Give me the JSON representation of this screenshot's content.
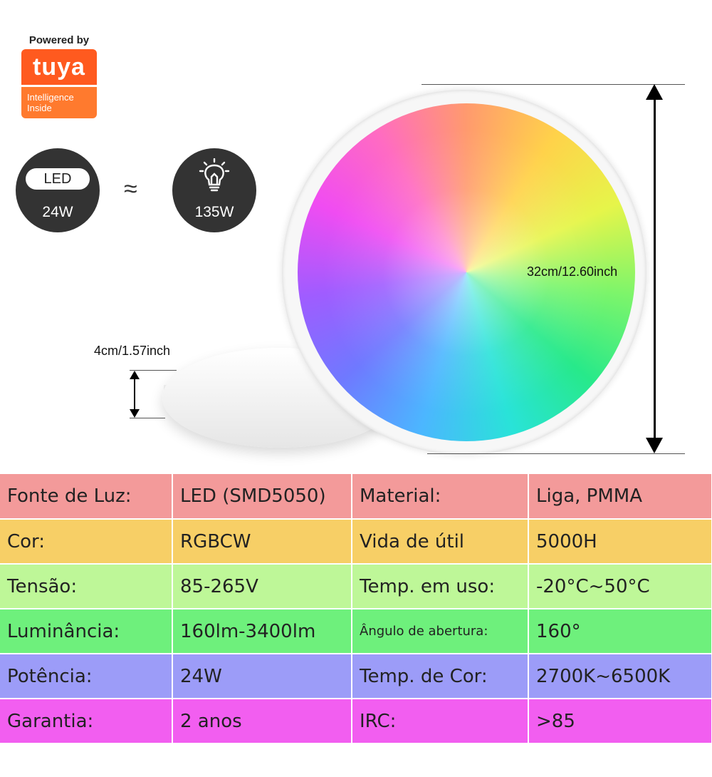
{
  "logo": {
    "powered_by": "Powered by",
    "brand": "tuya",
    "tagline_1": "Intelligence",
    "tagline_2": "Inside",
    "color": "#ff5a1f"
  },
  "comparison": {
    "led_label": "LED",
    "led_watts": "24W",
    "approx_symbol": "≈",
    "bulb_icon": "lightbulb-icon",
    "bulb_watts": "135W"
  },
  "dimensions": {
    "diameter": "32cm/12.60inch",
    "height": "4cm/1.57inch"
  },
  "specs": [
    {
      "label1": "Fonte de Luz:",
      "value1": "LED (SMD5050)",
      "label2": "Material:",
      "value2": "Liga, PMMA"
    },
    {
      "label1": "Cor:",
      "value1": "RGBCW",
      "label2": "Vida de útil",
      "value2": "5000H"
    },
    {
      "label1": "Tensão:",
      "value1": "85-265V",
      "label2": "Temp. em uso:",
      "value2": "-20°C~50°C"
    },
    {
      "label1": "Luminância:",
      "value1": "160lm-3400lm",
      "label2": "Ângulo de abertura:",
      "value2": "160°"
    },
    {
      "label1": "Potência:",
      "value1": "24W",
      "label2": "Temp. de Cor:",
      "value2": "2700K~6500K"
    },
    {
      "label1": "Garantia:",
      "value1": "2 anos",
      "label2": "IRC:",
      "value2": ">85"
    }
  ],
  "row_colors": [
    "#f39a9a",
    "#f7cf66",
    "#bef798",
    "#6ef07c",
    "#9c9cf8",
    "#f25ef0"
  ]
}
